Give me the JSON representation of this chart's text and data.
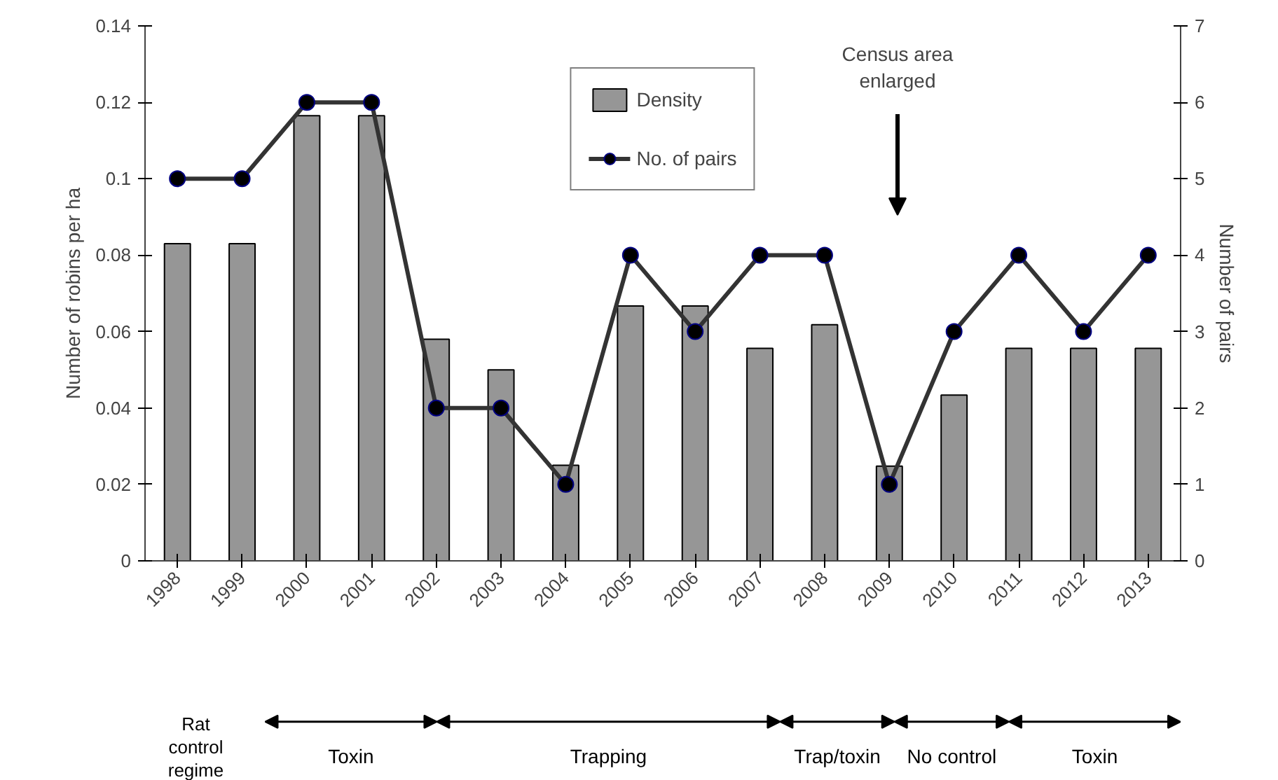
{
  "chart_data": {
    "type": "bar",
    "categories": [
      "1998",
      "1999",
      "2000",
      "2001",
      "2002",
      "2003",
      "2004",
      "2005",
      "2006",
      "2007",
      "2008",
      "2009",
      "2010",
      "2011",
      "2012",
      "2013"
    ],
    "series": [
      {
        "name": "Density",
        "color": "#969696",
        "values": [
          0.083,
          0.083,
          0.1165,
          0.1165,
          0.058,
          0.05,
          0.025,
          0.0667,
          0.0667,
          0.0556,
          0.0618,
          0.0248,
          0.0434,
          0.0556,
          0.0556,
          0.0556
        ]
      },
      {
        "name": "No. of pairs",
        "type": "line",
        "axis": "y2",
        "color": "#333333",
        "values": [
          5,
          5,
          6,
          6,
          2,
          2,
          1,
          4,
          3,
          4,
          4,
          1,
          3,
          4,
          3,
          4
        ]
      }
    ],
    "ylabel": "Number of robins per ha",
    "y2label": "Number of pairs",
    "ylim": [
      0,
      0.14
    ],
    "yticks": [
      0,
      0.02,
      0.04,
      0.06,
      0.08,
      0.1,
      0.12,
      0.14
    ],
    "y2lim": [
      0,
      7
    ],
    "y2ticks": [
      0,
      1,
      2,
      3,
      4,
      5,
      6,
      7
    ],
    "marker": "circle",
    "line_style": "solid",
    "grid": false,
    "legend": "top",
    "annotations": [
      "Census area enlarged",
      "Rat control regime",
      "Toxin",
      "Trapping",
      "Trap/toxin",
      "No control",
      "Toxin"
    ]
  }
}
